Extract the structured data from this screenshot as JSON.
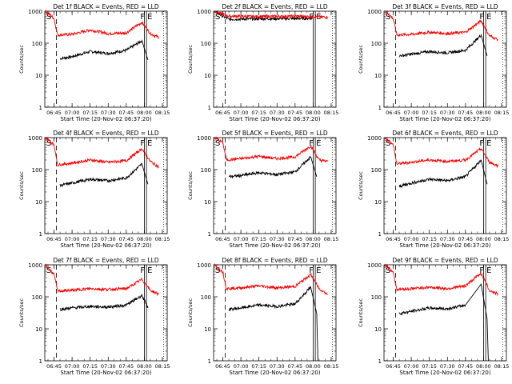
{
  "chart_data": [
    {
      "type": "line",
      "title": "Det 1f BLACK = Events, RED = LLD",
      "ylabel": "Counts/sec",
      "xlabel": "Start Time (20-Nov-02 06:37:20)",
      "x_ticks": [
        "06:45",
        "07:00",
        "07:15",
        "07:30",
        "07:45",
        "08:00",
        "08:15"
      ],
      "y_ticks": [
        "1",
        "10",
        "100",
        "1000"
      ],
      "y_scale": "log",
      "ylim": [
        1,
        1000
      ],
      "markers": [
        "S",
        "F",
        "E"
      ],
      "series": [
        {
          "name": "Events",
          "color": "#000000",
          "values": [
            {
              "t": "06:45",
              "y": null
            },
            {
              "t": "06:50",
              "y": 33
            },
            {
              "t": "07:00",
              "y": 38
            },
            {
              "t": "07:15",
              "y": 55
            },
            {
              "t": "07:30",
              "y": 48
            },
            {
              "t": "07:45",
              "y": 60
            },
            {
              "t": "07:58",
              "y": 120
            },
            {
              "t": "08:03",
              "y": 30
            }
          ]
        },
        {
          "name": "LLD",
          "color": "#ff0000",
          "values": [
            {
              "t": "06:38",
              "y": 1000
            },
            {
              "t": "06:45",
              "y": 600
            },
            {
              "t": "06:48",
              "y": 180
            },
            {
              "t": "07:00",
              "y": 190
            },
            {
              "t": "07:15",
              "y": 260
            },
            {
              "t": "07:30",
              "y": 200
            },
            {
              "t": "07:45",
              "y": 210
            },
            {
              "t": "07:58",
              "y": 450
            },
            {
              "t": "08:05",
              "y": 200
            },
            {
              "t": "08:12",
              "y": 150
            }
          ]
        }
      ]
    },
    {
      "type": "line",
      "title": "Det 2f BLACK = Events, RED = LLD",
      "ylabel": "Counts/sec",
      "xlabel": "Start Time (20-Nov-02 06:37:20)",
      "x_ticks": [
        "06:45",
        "07:00",
        "07:15",
        "07:30",
        "07:45",
        "08:00",
        "08:15"
      ],
      "y_ticks": [
        "1",
        "10",
        "100",
        "1000"
      ],
      "y_scale": "log",
      "ylim": [
        1,
        1000
      ],
      "markers": [
        "S",
        "F",
        "E"
      ],
      "series": [
        {
          "name": "Events",
          "color": "#000000",
          "values": [
            {
              "t": "06:38",
              "y": 1000
            },
            {
              "t": "06:45",
              "y": 700
            },
            {
              "t": "06:50",
              "y": 560
            },
            {
              "t": "07:15",
              "y": 580
            },
            {
              "t": "07:45",
              "y": 590
            },
            {
              "t": "08:00",
              "y": 600
            }
          ]
        },
        {
          "name": "LLD",
          "color": "#ff0000",
          "values": [
            {
              "t": "06:38",
              "y": 1000
            },
            {
              "t": "06:45",
              "y": 800
            },
            {
              "t": "06:50",
              "y": 700
            },
            {
              "t": "07:15",
              "y": 680
            },
            {
              "t": "07:45",
              "y": 700
            },
            {
              "t": "08:12",
              "y": 650
            }
          ]
        }
      ]
    },
    {
      "type": "line",
      "title": "Det 3f BLACK = Events, RED = LLD",
      "ylabel": "Counts/sec",
      "xlabel": "Start Time (20-Nov-02 06:37:20)",
      "x_ticks": [
        "06:45",
        "07:00",
        "07:15",
        "07:30",
        "07:45",
        "08:00",
        "08:15"
      ],
      "y_ticks": [
        "1",
        "10",
        "100",
        "1000"
      ],
      "y_scale": "log",
      "ylim": [
        1,
        1000
      ],
      "markers": [
        "S",
        "F",
        "E"
      ],
      "series": [
        {
          "name": "Events",
          "color": "#000000",
          "values": [
            {
              "t": "06:50",
              "y": 40
            },
            {
              "t": "07:00",
              "y": 45
            },
            {
              "t": "07:15",
              "y": 55
            },
            {
              "t": "07:30",
              "y": 50
            },
            {
              "t": "07:45",
              "y": 60
            },
            {
              "t": "07:58",
              "y": 180
            },
            {
              "t": "08:03",
              "y": 40
            }
          ]
        },
        {
          "name": "LLD",
          "color": "#ff0000",
          "values": [
            {
              "t": "06:38",
              "y": 1000
            },
            {
              "t": "06:45",
              "y": 600
            },
            {
              "t": "06:48",
              "y": 180
            },
            {
              "t": "07:00",
              "y": 190
            },
            {
              "t": "07:15",
              "y": 220
            },
            {
              "t": "07:30",
              "y": 200
            },
            {
              "t": "07:45",
              "y": 220
            },
            {
              "t": "07:58",
              "y": 500
            },
            {
              "t": "08:05",
              "y": 170
            },
            {
              "t": "08:12",
              "y": 130
            }
          ]
        }
      ]
    },
    {
      "type": "line",
      "title": "Det 4f BLACK = Events, RED = LLD",
      "ylabel": "Counts/sec",
      "xlabel": "Start Time (20-Nov-02 06:37:20)",
      "x_ticks": [
        "06:45",
        "07:00",
        "07:15",
        "07:30",
        "07:45",
        "08:00",
        "08:15"
      ],
      "y_ticks": [
        "1",
        "10",
        "100",
        "1000"
      ],
      "y_scale": "log",
      "ylim": [
        1,
        1000
      ],
      "markers": [
        "S",
        "F",
        "E"
      ],
      "series": [
        {
          "name": "Events",
          "color": "#000000",
          "values": [
            {
              "t": "06:50",
              "y": 32
            },
            {
              "t": "07:00",
              "y": 38
            },
            {
              "t": "07:15",
              "y": 50
            },
            {
              "t": "07:30",
              "y": 45
            },
            {
              "t": "07:45",
              "y": 55
            },
            {
              "t": "07:58",
              "y": 150
            },
            {
              "t": "08:03",
              "y": 35
            }
          ]
        },
        {
          "name": "LLD",
          "color": "#ff0000",
          "values": [
            {
              "t": "06:38",
              "y": 1000
            },
            {
              "t": "06:45",
              "y": 600
            },
            {
              "t": "06:48",
              "y": 140
            },
            {
              "t": "07:00",
              "y": 160
            },
            {
              "t": "07:15",
              "y": 200
            },
            {
              "t": "07:30",
              "y": 170
            },
            {
              "t": "07:45",
              "y": 190
            },
            {
              "t": "07:58",
              "y": 450
            },
            {
              "t": "08:05",
              "y": 180
            },
            {
              "t": "08:12",
              "y": 120
            }
          ]
        }
      ]
    },
    {
      "type": "line",
      "title": "Det 5f BLACK = Events, RED = LLD",
      "ylabel": "Counts/sec",
      "xlabel": "Start Time (20-Nov-02 06:37:20)",
      "x_ticks": [
        "06:45",
        "07:00",
        "07:15",
        "07:30",
        "07:45",
        "08:00",
        "08:15"
      ],
      "y_ticks": [
        "1",
        "10",
        "100",
        "1000"
      ],
      "y_scale": "log",
      "ylim": [
        1,
        1000
      ],
      "markers": [
        "S",
        "F",
        "E"
      ],
      "series": [
        {
          "name": "Events",
          "color": "#000000",
          "values": [
            {
              "t": "06:50",
              "y": 60
            },
            {
              "t": "07:00",
              "y": 65
            },
            {
              "t": "07:15",
              "y": 80
            },
            {
              "t": "07:30",
              "y": 70
            },
            {
              "t": "07:45",
              "y": 85
            },
            {
              "t": "07:58",
              "y": 250
            },
            {
              "t": "08:03",
              "y": 60
            }
          ]
        },
        {
          "name": "LLD",
          "color": "#ff0000",
          "values": [
            {
              "t": "06:38",
              "y": 1000
            },
            {
              "t": "06:45",
              "y": 700
            },
            {
              "t": "06:48",
              "y": 200
            },
            {
              "t": "07:00",
              "y": 220
            },
            {
              "t": "07:15",
              "y": 260
            },
            {
              "t": "07:30",
              "y": 220
            },
            {
              "t": "07:45",
              "y": 250
            },
            {
              "t": "07:58",
              "y": 550
            },
            {
              "t": "08:05",
              "y": 200
            },
            {
              "t": "08:12",
              "y": 180
            }
          ]
        }
      ]
    },
    {
      "type": "line",
      "title": "Det 6f BLACK = Events, RED = LLD",
      "ylabel": "Counts/sec",
      "xlabel": "Start Time (20-Nov-02 06:37:20)",
      "x_ticks": [
        "06:45",
        "07:00",
        "07:15",
        "07:30",
        "07:45",
        "08:00",
        "08:15"
      ],
      "y_ticks": [
        "1",
        "10",
        "100",
        "1000"
      ],
      "y_scale": "log",
      "ylim": [
        1,
        1000
      ],
      "markers": [
        "S",
        "F",
        "E"
      ],
      "series": [
        {
          "name": "Events",
          "color": "#000000",
          "values": [
            {
              "t": "06:50",
              "y": 30
            },
            {
              "t": "07:00",
              "y": 38
            },
            {
              "t": "07:15",
              "y": 50
            },
            {
              "t": "07:30",
              "y": 45
            },
            {
              "t": "07:45",
              "y": 60
            },
            {
              "t": "07:58",
              "y": 200
            },
            {
              "t": "08:03",
              "y": 35
            }
          ]
        },
        {
          "name": "LLD",
          "color": "#ff0000",
          "values": [
            {
              "t": "06:38",
              "y": 1000
            },
            {
              "t": "06:45",
              "y": 600
            },
            {
              "t": "06:48",
              "y": 150
            },
            {
              "t": "07:00",
              "y": 170
            },
            {
              "t": "07:15",
              "y": 200
            },
            {
              "t": "07:30",
              "y": 180
            },
            {
              "t": "07:45",
              "y": 200
            },
            {
              "t": "07:58",
              "y": 450
            },
            {
              "t": "08:05",
              "y": 170
            },
            {
              "t": "08:12",
              "y": 130
            }
          ]
        }
      ]
    },
    {
      "type": "line",
      "title": "Det 7f BLACK = Events, RED = LLD",
      "ylabel": "Counts/sec",
      "xlabel": "Start Time (20-Nov-02 06:37:20)",
      "x_ticks": [
        "06:45",
        "07:00",
        "07:15",
        "07:30",
        "07:45",
        "08:00",
        "08:15"
      ],
      "y_ticks": [
        "1",
        "10",
        "100",
        "1000"
      ],
      "y_scale": "log",
      "ylim": [
        1,
        1000
      ],
      "markers": [
        "S",
        "F",
        "E"
      ],
      "series": [
        {
          "name": "Events",
          "color": "#000000",
          "values": [
            {
              "t": "06:50",
              "y": 40
            },
            {
              "t": "07:00",
              "y": 45
            },
            {
              "t": "07:15",
              "y": 50
            },
            {
              "t": "07:30",
              "y": 48
            },
            {
              "t": "07:45",
              "y": 55
            },
            {
              "t": "07:58",
              "y": 110
            },
            {
              "t": "08:03",
              "y": 45
            }
          ]
        },
        {
          "name": "LLD",
          "color": "#ff0000",
          "values": [
            {
              "t": "06:38",
              "y": 1000
            },
            {
              "t": "06:45",
              "y": 500
            },
            {
              "t": "06:48",
              "y": 150
            },
            {
              "t": "07:00",
              "y": 160
            },
            {
              "t": "07:15",
              "y": 180
            },
            {
              "t": "07:30",
              "y": 170
            },
            {
              "t": "07:45",
              "y": 180
            },
            {
              "t": "07:58",
              "y": 350
            },
            {
              "t": "08:05",
              "y": 160
            },
            {
              "t": "08:12",
              "y": 120
            }
          ]
        }
      ]
    },
    {
      "type": "line",
      "title": "Det 8f BLACK = Events, RED = LLD",
      "ylabel": "Counts/sec",
      "xlabel": "Start Time (20-Nov-02 06:37:20)",
      "x_ticks": [
        "06:45",
        "07:00",
        "07:15",
        "07:30",
        "07:45",
        "08:00",
        "08:15"
      ],
      "y_ticks": [
        "1",
        "10",
        "100",
        "1000"
      ],
      "y_scale": "log",
      "ylim": [
        1,
        1000
      ],
      "markers": [
        "S",
        "F",
        "E"
      ],
      "series": [
        {
          "name": "Events",
          "color": "#000000",
          "values": [
            {
              "t": "06:50",
              "y": 40
            },
            {
              "t": "07:00",
              "y": 45
            },
            {
              "t": "07:15",
              "y": 55
            },
            {
              "t": "07:30",
              "y": 50
            },
            {
              "t": "07:45",
              "y": 60
            },
            {
              "t": "07:58",
              "y": 200
            },
            {
              "t": "08:03",
              "y": 30
            },
            {
              "t": "08:04",
              "y": 1
            }
          ]
        },
        {
          "name": "LLD",
          "color": "#ff0000",
          "values": [
            {
              "t": "06:38",
              "y": 1000
            },
            {
              "t": "06:45",
              "y": 600
            },
            {
              "t": "06:48",
              "y": 180
            },
            {
              "t": "07:00",
              "y": 190
            },
            {
              "t": "07:15",
              "y": 220
            },
            {
              "t": "07:30",
              "y": 190
            },
            {
              "t": "07:45",
              "y": 210
            },
            {
              "t": "07:58",
              "y": 500
            },
            {
              "t": "08:05",
              "y": 180
            },
            {
              "t": "08:12",
              "y": 120
            }
          ]
        }
      ]
    },
    {
      "type": "line",
      "title": "Det 9f BLACK = Events, RED = LLD",
      "ylabel": "Counts/sec",
      "xlabel": "Start Time (20-Nov-02 06:37:20)",
      "x_ticks": [
        "06:45",
        "07:00",
        "07:15",
        "07:30",
        "07:45",
        "08:00",
        "08:15"
      ],
      "y_ticks": [
        "1",
        "10",
        "100",
        "1000"
      ],
      "y_scale": "log",
      "ylim": [
        1,
        1000
      ],
      "markers": [
        "S",
        "F",
        "E"
      ],
      "series": [
        {
          "name": "Events",
          "color": "#000000",
          "values": [
            {
              "t": "06:50",
              "y": 30
            },
            {
              "t": "07:00",
              "y": 35
            },
            {
              "t": "07:15",
              "y": 45
            },
            {
              "t": "07:30",
              "y": 42
            },
            {
              "t": "07:45",
              "y": 55
            },
            {
              "t": "07:58",
              "y": 250
            },
            {
              "t": "08:03",
              "y": 20
            },
            {
              "t": "08:04",
              "y": 1
            }
          ]
        },
        {
          "name": "LLD",
          "color": "#ff0000",
          "values": [
            {
              "t": "06:38",
              "y": 1000
            },
            {
              "t": "06:45",
              "y": 600
            },
            {
              "t": "06:48",
              "y": 170
            },
            {
              "t": "07:00",
              "y": 180
            },
            {
              "t": "07:15",
              "y": 200
            },
            {
              "t": "07:30",
              "y": 180
            },
            {
              "t": "07:45",
              "y": 220
            },
            {
              "t": "07:58",
              "y": 550
            },
            {
              "t": "08:05",
              "y": 160
            },
            {
              "t": "08:12",
              "y": 120
            }
          ]
        }
      ]
    }
  ]
}
